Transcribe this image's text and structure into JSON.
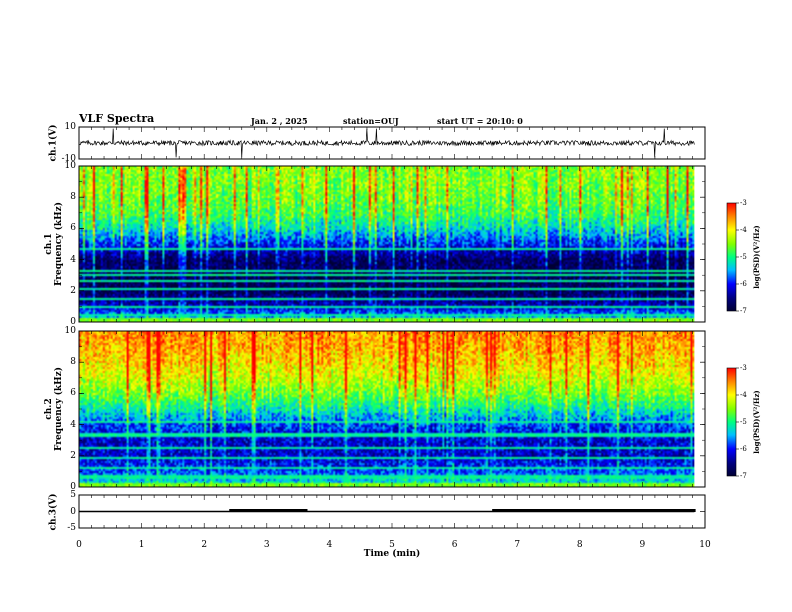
{
  "header": {
    "title": "VLF Spectra",
    "date": "Jan. 2 , 2025",
    "station": "station=OUJ",
    "start": "start UT =  20:10: 0"
  },
  "colors": {
    "waveform": "#000000",
    "colormap": [
      "#000033",
      "#000080",
      "#0000ff",
      "#00bfff",
      "#00ff80",
      "#80ff00",
      "#ffff00",
      "#ff8000",
      "#ff0000"
    ]
  },
  "chart_data": [
    {
      "type": "line",
      "panel": "ch1-waveform",
      "ylabel": "ch.1(V)",
      "ylim": [
        -10,
        10
      ],
      "yticks": [
        "10",
        "-10"
      ],
      "xlim": [
        0,
        10
      ],
      "description_values": {
        "baseline_v": 0,
        "noise_amplitude_v": 1.5
      },
      "spikes_min": [
        0.55,
        1.55,
        2.6,
        4.6,
        4.75,
        9.2,
        9.35
      ]
    },
    {
      "type": "heatmap",
      "panel": "ch1-spectrogram",
      "ylabel": "ch.1\nFrequency (kHz)",
      "ylim": [
        0,
        10
      ],
      "yticks": [
        "0",
        "2",
        "4",
        "6",
        "8",
        "10"
      ],
      "xlim": [
        0,
        10
      ],
      "colorbar": {
        "label": "log(PSD)(V²/Hz)",
        "range": [
          -7,
          -3
        ],
        "ticks": [
          "-3",
          "-4",
          "-5",
          "-6",
          "-7"
        ]
      },
      "level_profile": {
        "freq_khz": [
          0,
          0.5,
          1,
          2,
          3,
          4,
          5,
          6,
          7,
          8,
          9,
          10
        ],
        "log_psd": [
          -5.2,
          -5.6,
          -6.2,
          -6.8,
          -6.8,
          -6.7,
          -6.0,
          -5.3,
          -4.8,
          -4.6,
          -4.5,
          -4.5
        ]
      },
      "narrowband_lines_khz": [
        0.5,
        1.0,
        1.5,
        2.2,
        2.7,
        3.1,
        3.3,
        4.7
      ]
    },
    {
      "type": "heatmap",
      "panel": "ch2-spectrogram",
      "ylabel": "ch.2\nFrequency (kHz)",
      "ylim": [
        0,
        10
      ],
      "yticks": [
        "0",
        "2",
        "4",
        "6",
        "8",
        "10"
      ],
      "xlim": [
        0,
        10
      ],
      "colorbar": {
        "label": "log(PSD)(V²/Hz)",
        "range": [
          -7,
          -3
        ],
        "ticks": [
          "-3",
          "-4",
          "-5",
          "-6",
          "-7"
        ]
      },
      "level_profile": {
        "freq_khz": [
          0,
          0.5,
          1,
          2,
          3,
          4,
          5,
          6,
          7,
          8,
          9,
          10
        ],
        "log_psd": [
          -5.0,
          -5.4,
          -5.8,
          -6.2,
          -6.2,
          -5.9,
          -5.2,
          -4.6,
          -4.2,
          -3.9,
          -3.7,
          -3.6
        ]
      },
      "narrowband_lines_khz": [
        0.7,
        1.3,
        1.9,
        2.6,
        3.4,
        4.2
      ]
    },
    {
      "type": "line",
      "panel": "ch3-waveform",
      "ylabel": "ch.3(V)",
      "ylim": [
        -5,
        5
      ],
      "yticks": [
        "5",
        "0",
        "-5"
      ],
      "xlim": [
        0,
        10
      ],
      "xlabel": "Time (min)",
      "xticks": [
        "0",
        "1",
        "2",
        "3",
        "4",
        "5",
        "6",
        "7",
        "8",
        "9",
        "10"
      ],
      "level_v": 0,
      "thick_segments_min": [
        [
          2.4,
          3.65
        ],
        [
          6.6,
          9.85
        ]
      ]
    }
  ]
}
